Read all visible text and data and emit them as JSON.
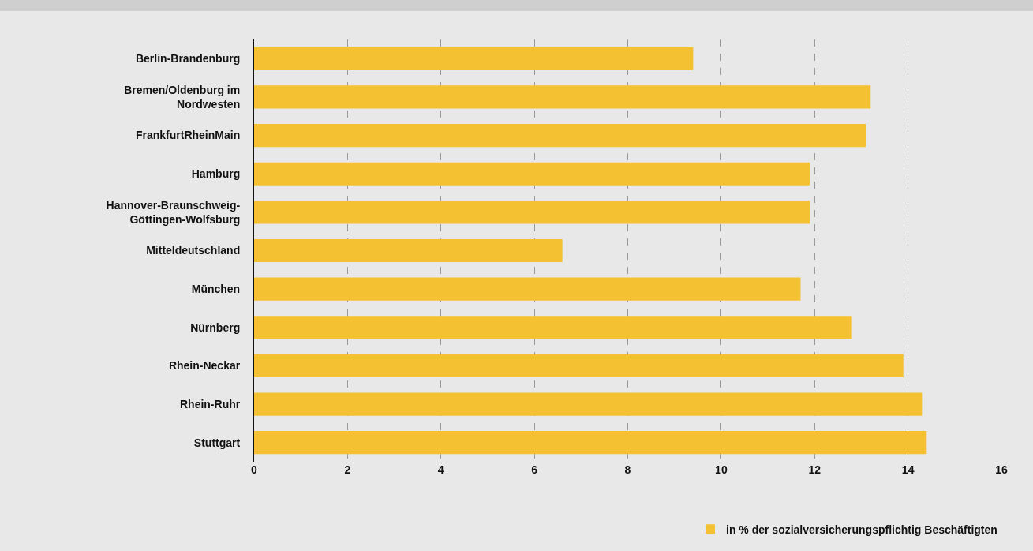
{
  "chart_data": {
    "type": "bar",
    "orientation": "horizontal",
    "categories": [
      "Berlin-Brandenburg",
      "Bremen/Oldenburg im Nordwesten",
      "FrankfurtRheinMain",
      "Hamburg",
      "Hannover-Braunschweig-Göttingen-Wolfsburg",
      "Mitteldeutschland",
      "München",
      "Nürnberg",
      "Rhein-Neckar",
      "Rhein-Ruhr",
      "Stuttgart"
    ],
    "series": [
      {
        "name": "in % der sozialversicherungspflichtig Beschäftigten",
        "color": "#f4c132",
        "values": [
          9.4,
          13.2,
          13.1,
          11.9,
          11.9,
          6.6,
          11.7,
          12.8,
          13.9,
          14.3,
          14.4
        ]
      }
    ],
    "xlim": [
      0,
      16
    ],
    "xticks": [
      0,
      2,
      4,
      6,
      8,
      10,
      12,
      14,
      16
    ],
    "grid": "x",
    "legend": "bottom right"
  }
}
